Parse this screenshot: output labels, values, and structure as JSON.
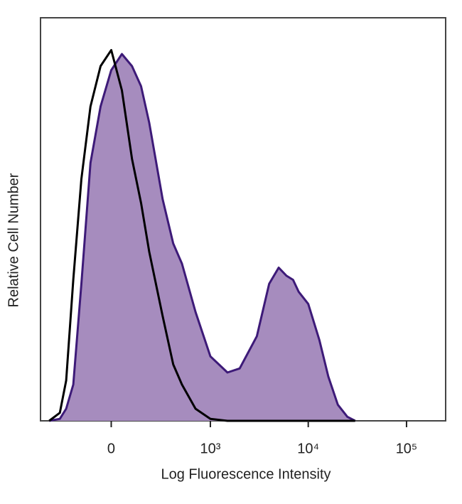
{
  "chart_data": {
    "type": "area",
    "x_label": "Log Fluorescence Intensity",
    "y_label": "Relative Cell Number",
    "xscale": "biexponential",
    "xlim": [
      -500,
      250000
    ],
    "xticks": [
      0,
      {
        "value": 1000,
        "label": "10³"
      },
      {
        "value": 10000,
        "label": "10⁴"
      },
      {
        "value": 100000,
        "label": "10⁵"
      }
    ],
    "ylim": [
      0,
      100
    ],
    "x": [
      -400,
      -300,
      -250,
      -200,
      -150,
      -100,
      -50,
      0,
      50,
      100,
      150,
      200,
      300,
      400,
      500,
      700,
      1000,
      1500,
      2000,
      3000,
      4000,
      5000,
      6000,
      7000,
      8000,
      10000,
      13000,
      16000,
      20000,
      25000,
      30000
    ],
    "series": [
      {
        "color": "#3d1a78",
        "fill": "#a68cbe",
        "values": [
          0,
          0.5,
          3,
          9,
          34,
          64,
          78,
          87,
          91,
          88,
          83,
          74,
          55,
          44,
          39,
          27,
          16,
          12,
          13,
          21,
          34,
          38,
          36,
          35,
          32,
          29,
          20,
          11,
          4,
          1,
          0
        ]
      },
      {
        "color": "#000000",
        "values": [
          0,
          2,
          10,
          35,
          60,
          78,
          88,
          92,
          82,
          65,
          54,
          42,
          26,
          14,
          9,
          3,
          0.5,
          0,
          0,
          0,
          0,
          0,
          0,
          0,
          0,
          0,
          0,
          0,
          0,
          0,
          0
        ]
      }
    ]
  }
}
